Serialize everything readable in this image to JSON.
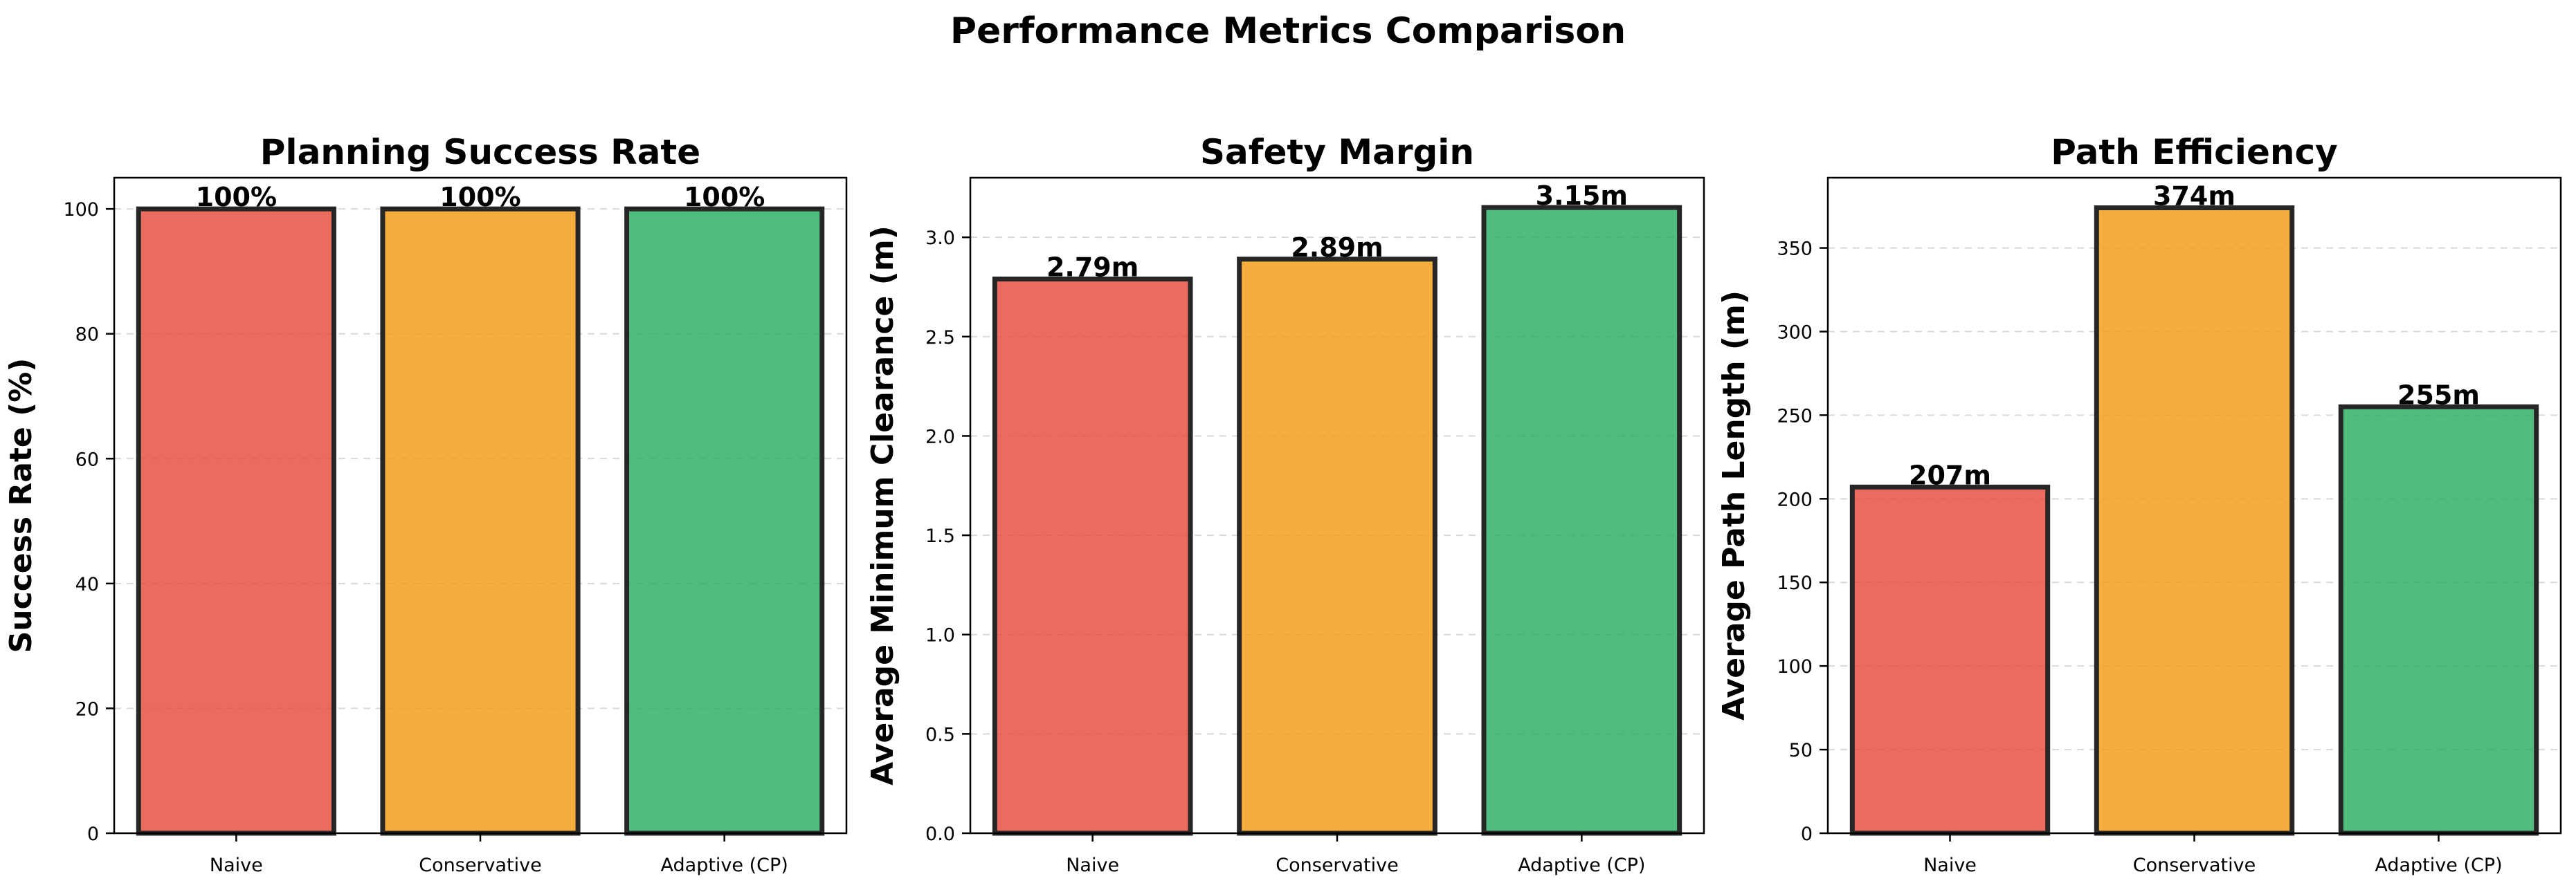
{
  "figure": {
    "title": "Performance Metrics Comparison"
  },
  "colors": {
    "Naive": "#e74c3c",
    "Conservative": "#f39c12",
    "Adaptive (CP)": "#27ae60",
    "edge": "#262626"
  },
  "chart_data": [
    {
      "type": "bar",
      "title": "Planning Success Rate",
      "xlabel": "",
      "ylabel": "Success Rate (%)",
      "categories": [
        "Naive",
        "Conservative",
        "Adaptive (CP)"
      ],
      "values": [
        100,
        100,
        100
      ],
      "value_labels": [
        "100%",
        "100%",
        "100%"
      ],
      "ylim": [
        0,
        105
      ],
      "yticks": [
        0,
        20,
        40,
        60,
        80,
        100
      ],
      "ytick_labels": [
        "0",
        "20",
        "40",
        "60",
        "80",
        "100"
      ],
      "grid": "y-dashed"
    },
    {
      "type": "bar",
      "title": "Safety Margin",
      "xlabel": "",
      "ylabel": "Average Minimum Clearance (m)",
      "categories": [
        "Naive",
        "Conservative",
        "Adaptive (CP)"
      ],
      "values": [
        2.79,
        2.89,
        3.15
      ],
      "value_labels": [
        "2.79m",
        "2.89m",
        "3.15m"
      ],
      "ylim": [
        0,
        3.3
      ],
      "yticks": [
        0,
        0.5,
        1.0,
        1.5,
        2.0,
        2.5,
        3.0
      ],
      "ytick_labels": [
        "0.0",
        "0.5",
        "1.0",
        "1.5",
        "2.0",
        "2.5",
        "3.0"
      ],
      "grid": "y-dashed"
    },
    {
      "type": "bar",
      "title": "Path Efficiency",
      "xlabel": "",
      "ylabel": "Average Path Length (m)",
      "categories": [
        "Naive",
        "Conservative",
        "Adaptive (CP)"
      ],
      "values": [
        207,
        374,
        255
      ],
      "value_labels": [
        "207m",
        "374m",
        "255m"
      ],
      "ylim": [
        0,
        392
      ],
      "yticks": [
        0,
        50,
        100,
        150,
        200,
        250,
        300,
        350
      ],
      "ytick_labels": [
        "0",
        "50",
        "100",
        "150",
        "200",
        "250",
        "300",
        "350"
      ],
      "grid": "y-dashed"
    }
  ]
}
